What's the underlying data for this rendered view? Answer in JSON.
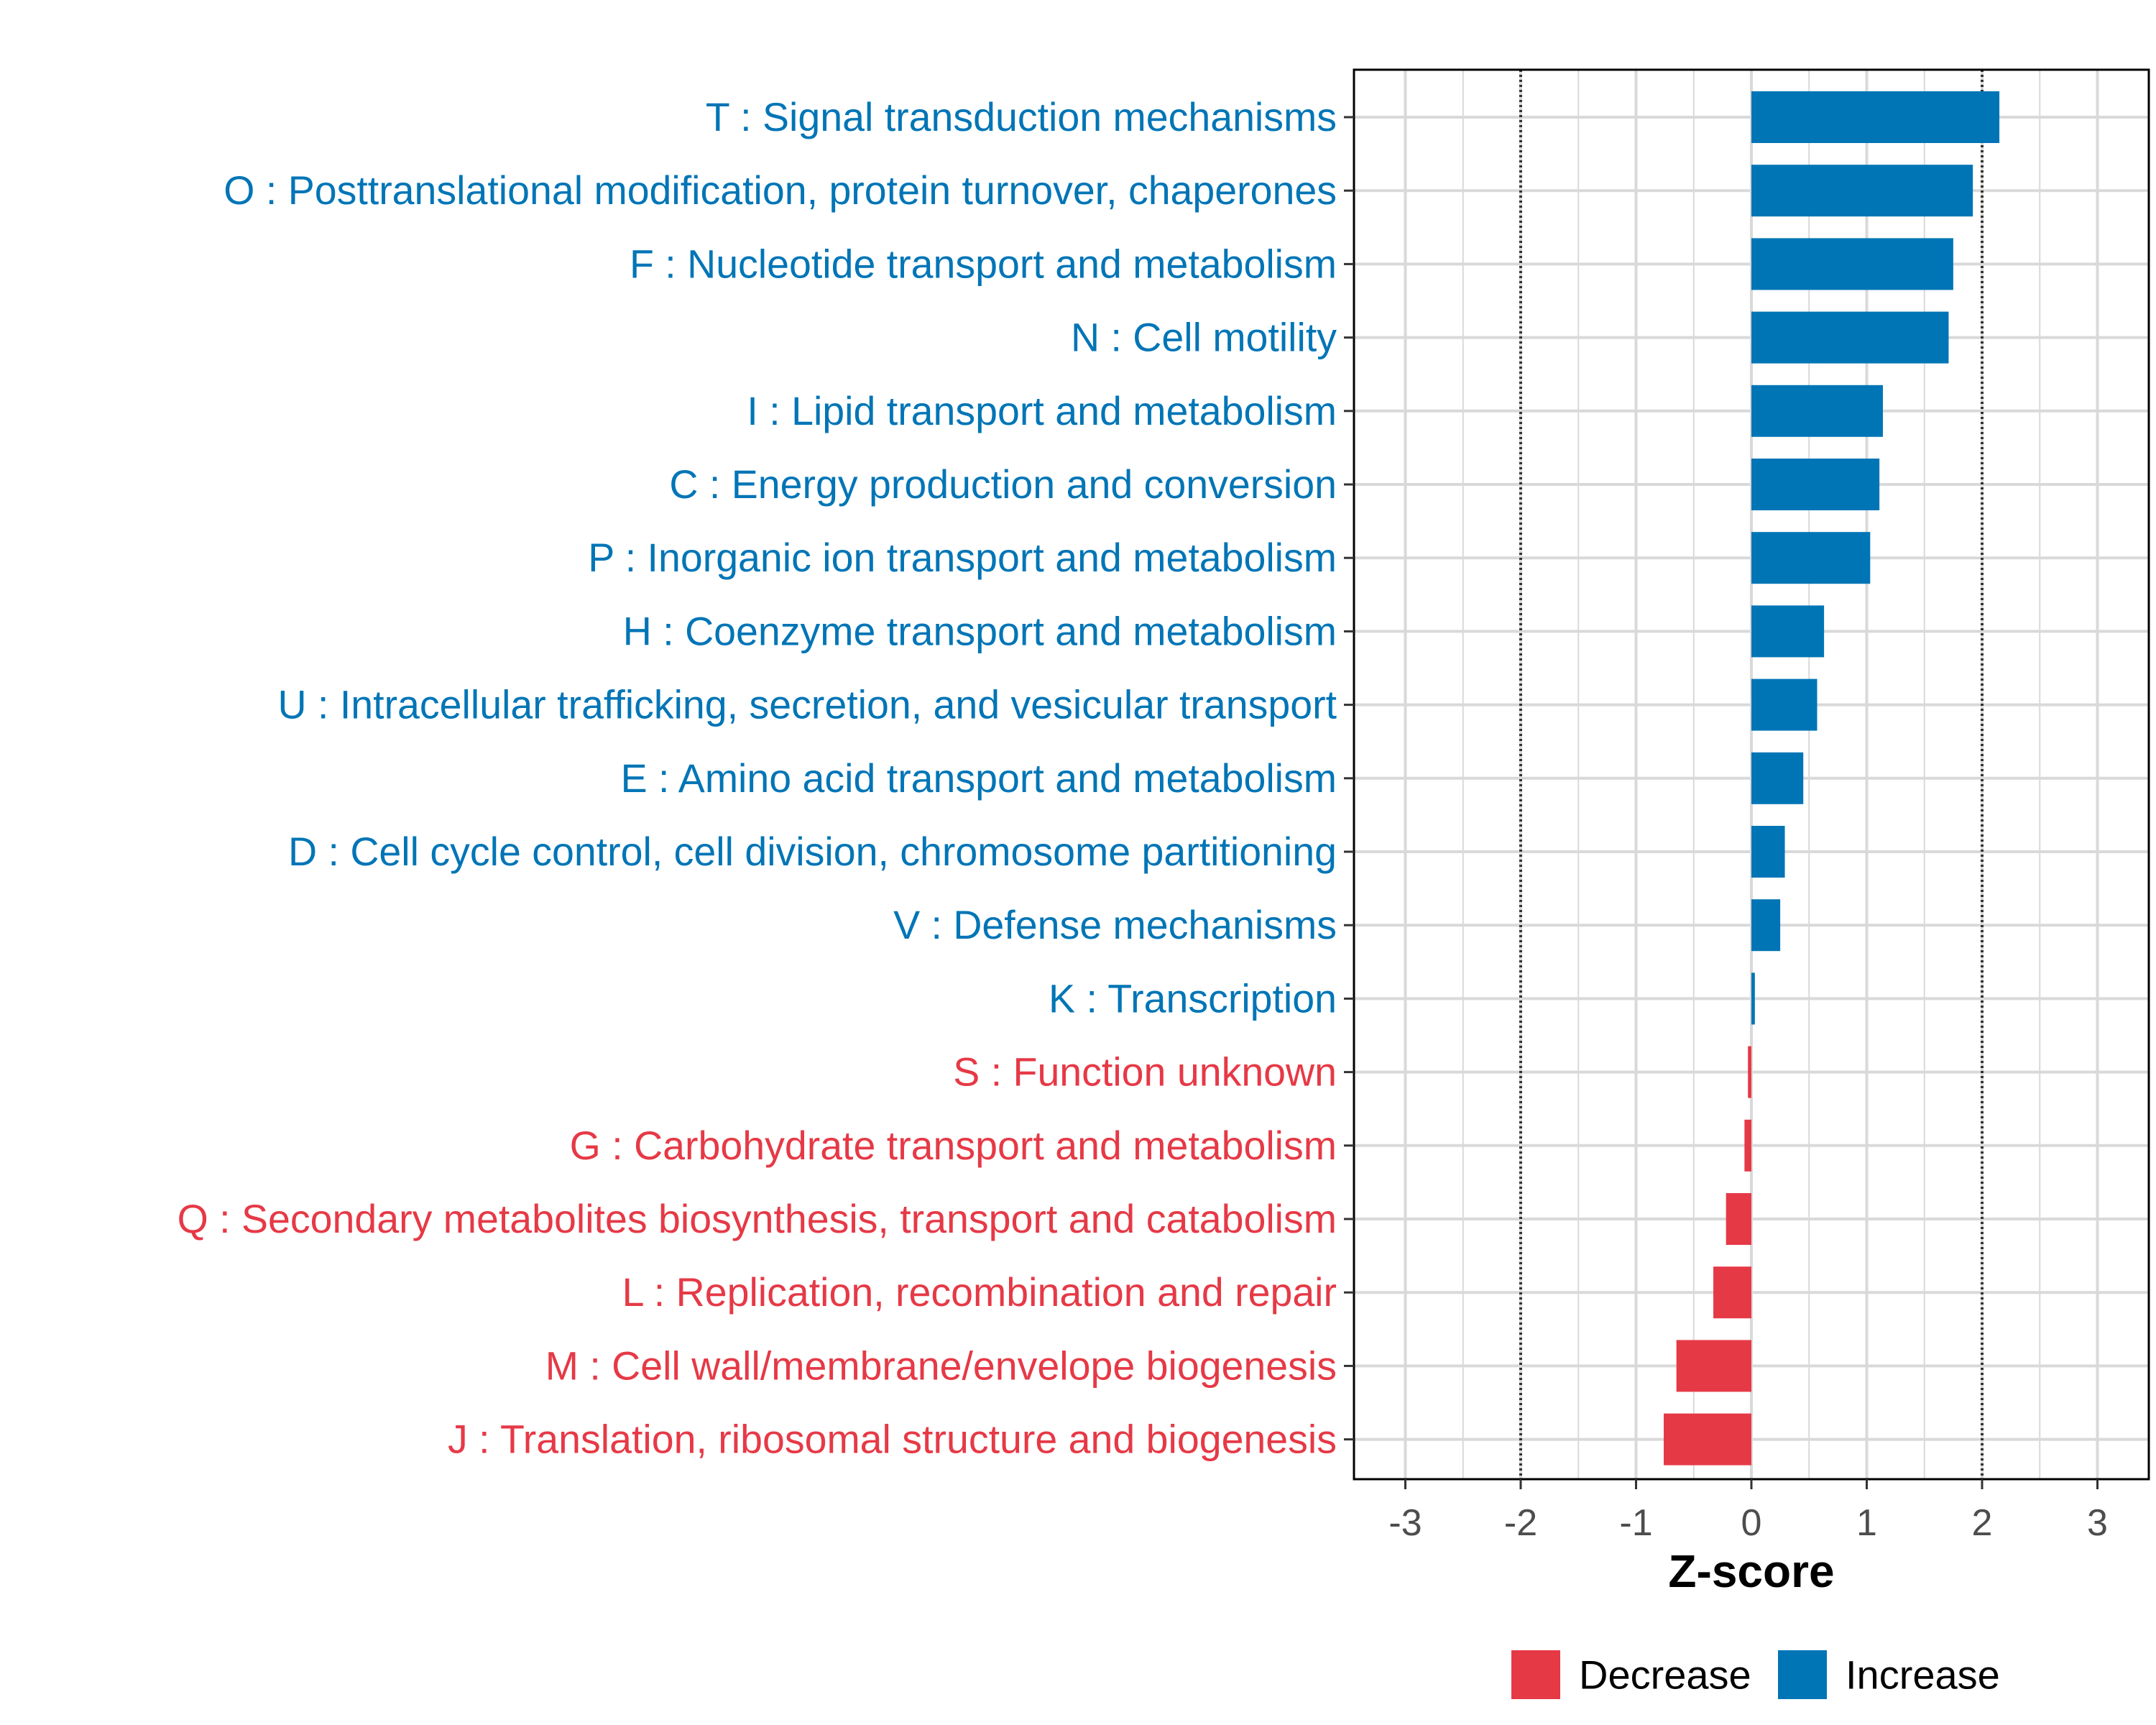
{
  "chart_data": {
    "type": "bar",
    "orientation": "horizontal",
    "title": "",
    "xlabel": "Z-score",
    "ylabel": "",
    "xlim": [
      -3.45,
      3.45
    ],
    "xticks": [
      -3,
      -2,
      -1,
      0,
      1,
      2,
      3
    ],
    "xtick_labels": [
      "-3",
      "-2",
      "-1",
      "0",
      "1",
      "2",
      "3"
    ],
    "reference_lines": [
      -2,
      2
    ],
    "grid": true,
    "categories": [
      "T : Signal transduction mechanisms",
      "O : Posttranslational modification, protein turnover, chaperones",
      "F : Nucleotide transport and metabolism",
      "N : Cell motility",
      "I : Lipid transport and metabolism",
      "C : Energy production and conversion",
      "P : Inorganic ion transport and metabolism",
      "H : Coenzyme transport and metabolism",
      "U : Intracellular trafficking, secretion, and vesicular transport",
      "E : Amino acid transport and metabolism",
      "D : Cell cycle control, cell division, chromosome partitioning",
      "V : Defense mechanisms",
      "K : Transcription",
      "S : Function unknown",
      "G : Carbohydrate transport and metabolism",
      "Q : Secondary metabolites biosynthesis, transport and catabolism",
      "L : Replication, recombination and repair",
      "M : Cell wall/membrane/envelope biogenesis",
      "J : Translation, ribosomal structure and biogenesis"
    ],
    "values": [
      2.15,
      1.92,
      1.75,
      1.71,
      1.14,
      1.11,
      1.03,
      0.63,
      0.57,
      0.45,
      0.29,
      0.25,
      0.03,
      -0.03,
      -0.06,
      -0.22,
      -0.33,
      -0.65,
      -0.76
    ],
    "legend": {
      "position": "bottom",
      "entries": [
        {
          "name": "Decrease",
          "color": "#E63946"
        },
        {
          "name": "Increase",
          "color": "#0075B6"
        }
      ]
    },
    "colors": {
      "increase": "#0075B6",
      "decrease": "#E63946",
      "grid": "#D9D9D9",
      "axis_text": "#4D4D4D"
    }
  }
}
